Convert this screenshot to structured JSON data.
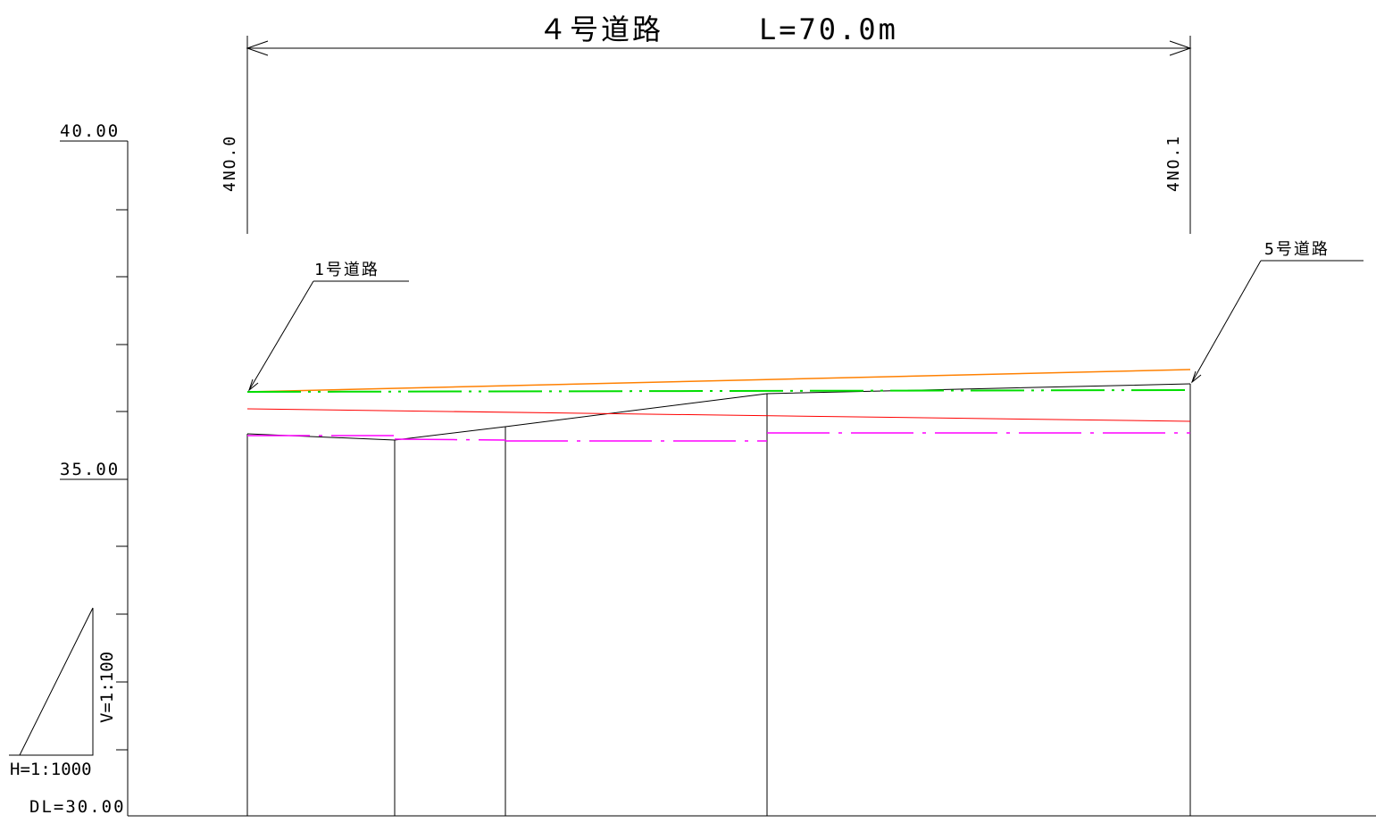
{
  "title": {
    "road": "４号道路",
    "length": "L=70.0m"
  },
  "stations": {
    "start": "4NO.0",
    "end": "4NO.1"
  },
  "junctions": {
    "start": "1号道路",
    "end": "5号道路"
  },
  "axis": {
    "label_top": "40.00",
    "label_mid": "35.00",
    "datum": "DL=30.00"
  },
  "scales": {
    "horizontal": "H=1:1000",
    "vertical": "V=1:100"
  },
  "colors": {
    "planned_grade": "#ff8000",
    "ground_green": "#00dd00",
    "red_line": "#ff0000",
    "magenta_line": "#ff00ff",
    "profile": "#000000"
  }
}
